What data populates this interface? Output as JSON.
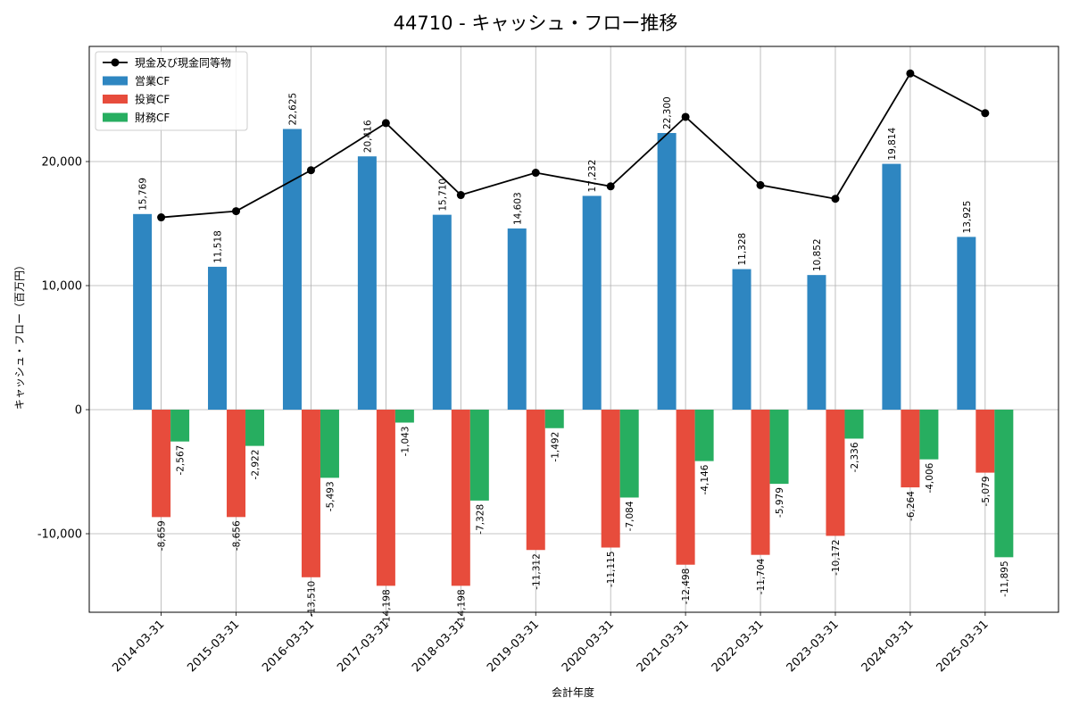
{
  "chart_data": {
    "type": "bar",
    "title": "44710 - キャッシュ・フロー推移",
    "xlabel": "会計年度",
    "ylabel": "キャッシュ・フロー（百万円）",
    "categories": [
      "2014-03-31",
      "2015-03-31",
      "2016-03-31",
      "2017-03-31",
      "2018-03-31",
      "2019-03-31",
      "2020-03-31",
      "2021-03-31",
      "2022-03-31",
      "2023-03-31",
      "2024-03-31",
      "2025-03-31"
    ],
    "series": [
      {
        "name": "営業CF",
        "type": "bar",
        "color": "#2e86c1",
        "values": [
          15769,
          11518,
          22625,
          20416,
          15710,
          14603,
          17232,
          22300,
          11328,
          10852,
          19814,
          13925
        ],
        "labels": [
          "15,769",
          "11,518",
          "22,625",
          "20,416",
          "15,710",
          "14,603",
          "17,232",
          "22,300",
          "11,328",
          "10,852",
          "19,814",
          "13,925"
        ]
      },
      {
        "name": "投資CF",
        "type": "bar",
        "color": "#e74c3c",
        "values": [
          -8659,
          -8656,
          -13510,
          -14198,
          -14198,
          -11312,
          -11115,
          -12498,
          -11704,
          -10172,
          -6264,
          -5079
        ],
        "labels": [
          "-8,659",
          "-8,656",
          "-13,510",
          "-14,198",
          "-14,198",
          "-11,312",
          "-11,115",
          "-12,498",
          "-11,704",
          "-10,172",
          "-6,264",
          "-5,079"
        ]
      },
      {
        "name": "財務CF",
        "type": "bar",
        "color": "#27ae60",
        "values": [
          -2567,
          -2922,
          -5493,
          -1043,
          -7328,
          -1492,
          -7084,
          -4146,
          -5979,
          -2336,
          -4006,
          -11895
        ],
        "labels": [
          "-2,567",
          "-2,922",
          "-5,493",
          "-1,043",
          "-7,328",
          "-1,492",
          "-7,084",
          "-4,146",
          "-5,979",
          "-2,336",
          "-4,006",
          "-11,895"
        ]
      },
      {
        "name": "現金及び現金同等物",
        "type": "line",
        "color": "#000000",
        "values": [
          15500,
          16000,
          19300,
          23100,
          17300,
          19100,
          18000,
          23600,
          18100,
          17000,
          27100,
          23900
        ]
      }
    ],
    "ylim": [
      -16000,
      29000
    ],
    "yticks": [
      -10000,
      0,
      10000,
      20000
    ],
    "ytick_labels": [
      "-10,000",
      "0",
      "10,000",
      "20,000"
    ],
    "grid": true,
    "legend_position": "top-left"
  }
}
